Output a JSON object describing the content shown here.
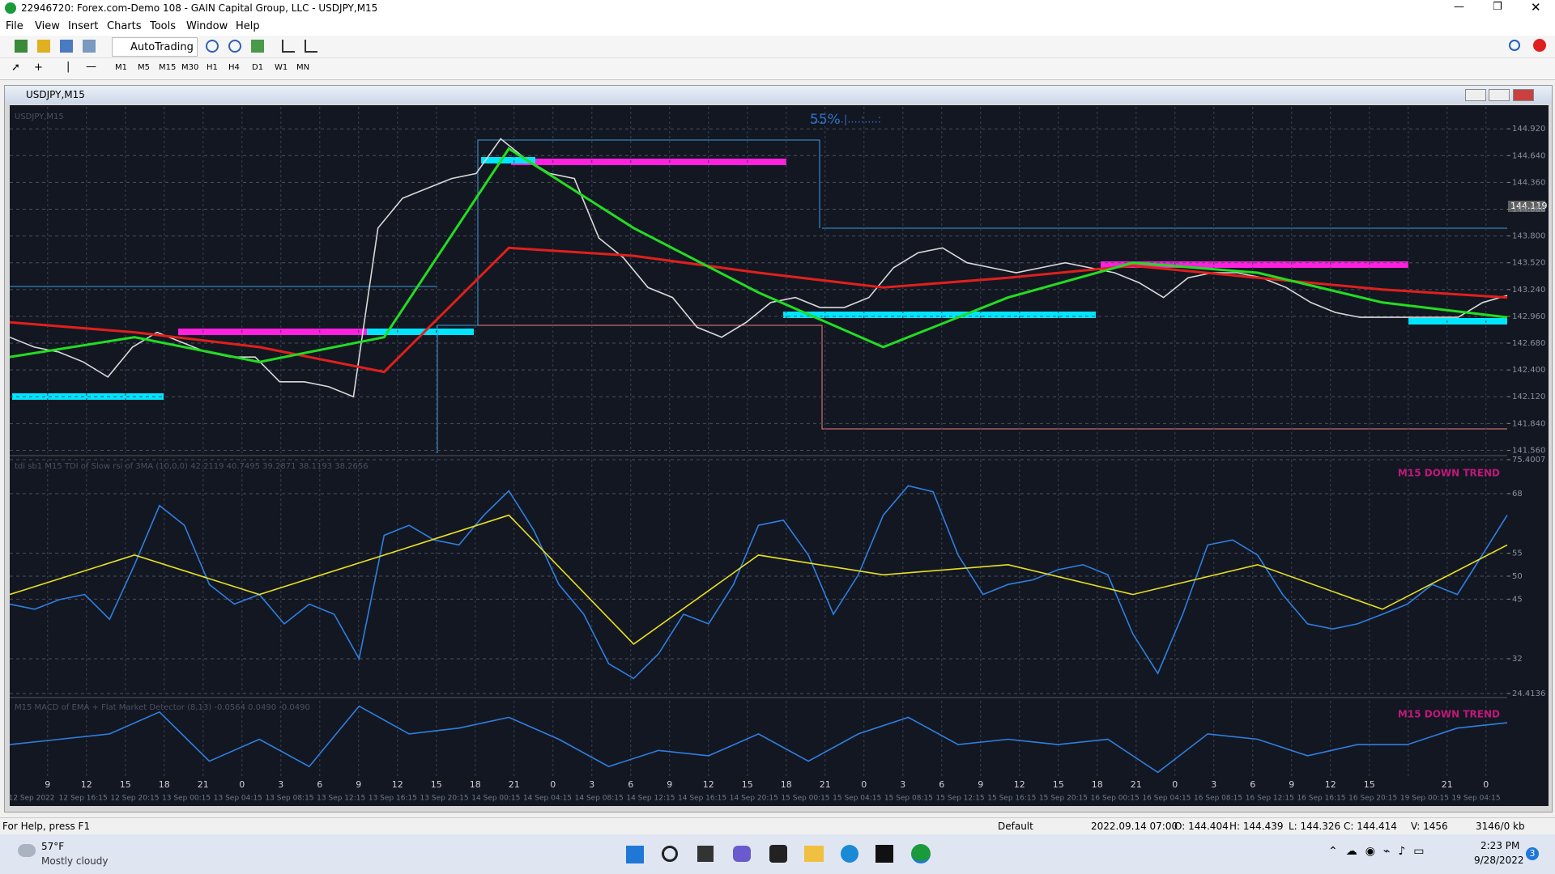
{
  "window": {
    "title": "22946720: Forex.com-Demo 108 - GAIN Capital Group, LLC - USDJPY,M15"
  },
  "menu": [
    "File",
    "View",
    "Insert",
    "Charts",
    "Tools",
    "Window",
    "Help"
  ],
  "toolbar": {
    "autotrading": "AutoTrading",
    "timeframes": [
      "M1",
      "M5",
      "M15",
      "M30",
      "H1",
      "H4",
      "D1",
      "W1",
      "MN"
    ]
  },
  "chart_window": {
    "title": "USDJPY,M15",
    "price_marker": "144.119"
  },
  "chart_data": [
    {
      "type": "line",
      "title": "USDJPY,M15",
      "annotation": "55%",
      "ylim": [
        141.53,
        145.15
      ],
      "yticks": [
        {
          "value": 144.92,
          "label": "144.920"
        },
        {
          "value": 144.64,
          "label": "144.640"
        },
        {
          "value": 144.36,
          "label": "144.360"
        },
        {
          "value": 144.08,
          "label": "144.080"
        },
        {
          "value": 143.8,
          "label": "143.800"
        },
        {
          "value": 143.52,
          "label": "143.520"
        },
        {
          "value": 143.24,
          "label": "143.240"
        },
        {
          "value": 142.96,
          "label": "142.960"
        },
        {
          "value": 142.68,
          "label": "142.680"
        },
        {
          "value": 142.4,
          "label": "142.400"
        },
        {
          "value": 142.12,
          "label": "142.120"
        },
        {
          "value": 141.84,
          "label": "141.840"
        },
        {
          "value": 141.56,
          "label": "141.560"
        }
      ],
      "series": [
        {
          "color": "#d9d9d9",
          "values": [
            142.742,
            142.639,
            142.587,
            142.483,
            142.327,
            142.639,
            142.794,
            142.69,
            142.587,
            142.535,
            142.535,
            142.276,
            142.276,
            142.224,
            142.12,
            143.883,
            144.194,
            144.298,
            144.401,
            144.453,
            144.816,
            144.609,
            144.453,
            144.401,
            143.779,
            143.572,
            143.261,
            143.157,
            142.846,
            142.742,
            142.898,
            143.105,
            143.157,
            143.053,
            143.053,
            143.157,
            143.468,
            143.624,
            143.676,
            143.52,
            143.468,
            143.416,
            143.468,
            143.52,
            143.468,
            143.416,
            143.313,
            143.157,
            143.364,
            143.416,
            143.416,
            143.364,
            143.261,
            143.105,
            143.001,
            142.95,
            142.95,
            142.95,
            142.95,
            142.95,
            143.105,
            143.178
          ]
        },
        {
          "color": "#e0201c",
          "values": [
            142.898,
            142.794,
            142.639,
            142.379,
            143.676,
            143.593,
            143.416,
            143.261,
            143.364,
            143.489,
            143.364,
            143.24,
            143.157
          ]
        },
        {
          "color": "#22dd22",
          "values": [
            142.535,
            142.742,
            142.483,
            142.742,
            144.713,
            143.883,
            143.209,
            142.639,
            143.157,
            143.52,
            143.416,
            143.105,
            142.95
          ]
        }
      ]
    },
    {
      "type": "line",
      "title": "tdi sb1 M15 TDI of Slow rsi of 3MA (10,0,0) 42.2119 40.7495 39.2871 38.1193 38.2656",
      "annotation": "M15 DOWN TREND",
      "ylim": [
        24.4136,
        75.4007
      ],
      "yticks": [
        24.4136,
        32,
        45,
        50,
        55,
        68,
        75.4007
      ],
      "series": [
        {
          "color": "#2f7fe0",
          "values": [
            43.9,
            42.8,
            44.9,
            46.0,
            40.6,
            52.5,
            65.4,
            61.1,
            48.2,
            43.9,
            46.0,
            39.6,
            43.9,
            41.7,
            32.0,
            58.9,
            61.1,
            57.9,
            56.8,
            63.3,
            68.6,
            60.0,
            48.2,
            41.7,
            30.9,
            27.7,
            33.1,
            41.7,
            39.6,
            48.2,
            61.1,
            62.2,
            54.6,
            41.7,
            50.3,
            63.3,
            69.7,
            68.4,
            54.6,
            46.0,
            48.2,
            49.2,
            51.4,
            52.5,
            50.3,
            37.4,
            28.8,
            41.7,
            56.8,
            57.9,
            54.6,
            46.0,
            39.6,
            38.5,
            39.6,
            41.7,
            43.9,
            48.2,
            46.0,
            54.6,
            63.3
          ]
        },
        {
          "color": "#e8e020",
          "values": [
            46.0,
            54.6,
            46.0,
            54.6,
            63.3,
            35.2,
            54.6,
            50.3,
            52.5,
            46.0,
            52.5,
            42.8,
            56.8
          ]
        }
      ]
    },
    {
      "type": "line",
      "title": "M15 MACD of EMA + Flat Market Detector (8,13) -0.0564 0.0490 -0.0490",
      "annotation": "M15 DOWN TREND",
      "ylim": [
        -0.1,
        0.1
      ],
      "series": [
        {
          "color": "#2f7fe0",
          "values": [
            -0.014,
            0,
            0.014,
            0.071,
            -0.057,
            0,
            -0.071,
            0.086,
            0.014,
            0.029,
            0.057,
            0,
            -0.071,
            -0.029,
            -0.043,
            0.014,
            -0.057,
            0.014,
            0.057,
            -0.014,
            0,
            -0.014,
            0,
            -0.086,
            0.014,
            0,
            -0.043,
            -0.014,
            -0.014,
            0.029,
            0.043
          ]
        }
      ]
    }
  ],
  "time_axis": {
    "hours": [
      9,
      12,
      15,
      18,
      21,
      0,
      3,
      6,
      9,
      12,
      15,
      18,
      21,
      0,
      3,
      6,
      9,
      12,
      15,
      18,
      21,
      0,
      3,
      6,
      9,
      12,
      15,
      18,
      21,
      0,
      3,
      6,
      9,
      12,
      15,
      null,
      21,
      0
    ],
    "dates": [
      "12 Sep 2022",
      "12 Sep 16:15",
      "12 Sep 20:15",
      "13 Sep 00:15",
      "13 Sep 04:15",
      "13 Sep 08:15",
      "13 Sep 12:15",
      "13 Sep 16:15",
      "13 Sep 20:15",
      "14 Sep 00:15",
      "14 Sep 04:15",
      "14 Sep 08:15",
      "14 Sep 12:15",
      "14 Sep 16:15",
      "14 Sep 20:15",
      "15 Sep 00:15",
      "15 Sep 04:15",
      "15 Sep 08:15",
      "15 Sep 12:15",
      "15 Sep 16:15",
      "15 Sep 20:15",
      "16 Sep 00:15",
      "16 Sep 04:15",
      "16 Sep 08:15",
      "16 Sep 12:15",
      "16 Sep 16:15",
      "16 Sep 20:15",
      "19 Sep 00:15",
      "19 Sep 04:15"
    ]
  },
  "status_bar": {
    "help": "For Help, press F1",
    "profile": "Default",
    "time": "2022.09.14 07:00",
    "open": "O: 144.404",
    "high": "H: 144.439",
    "low": "L: 144.326",
    "close": "C: 144.414",
    "volume": "V: 1456",
    "traffic": "3146/0 kb"
  },
  "taskbar": {
    "temperature": "57°F",
    "weather": "Mostly cloudy",
    "time": "2:23 PM",
    "date": "9/28/2022",
    "notifications": "3"
  }
}
